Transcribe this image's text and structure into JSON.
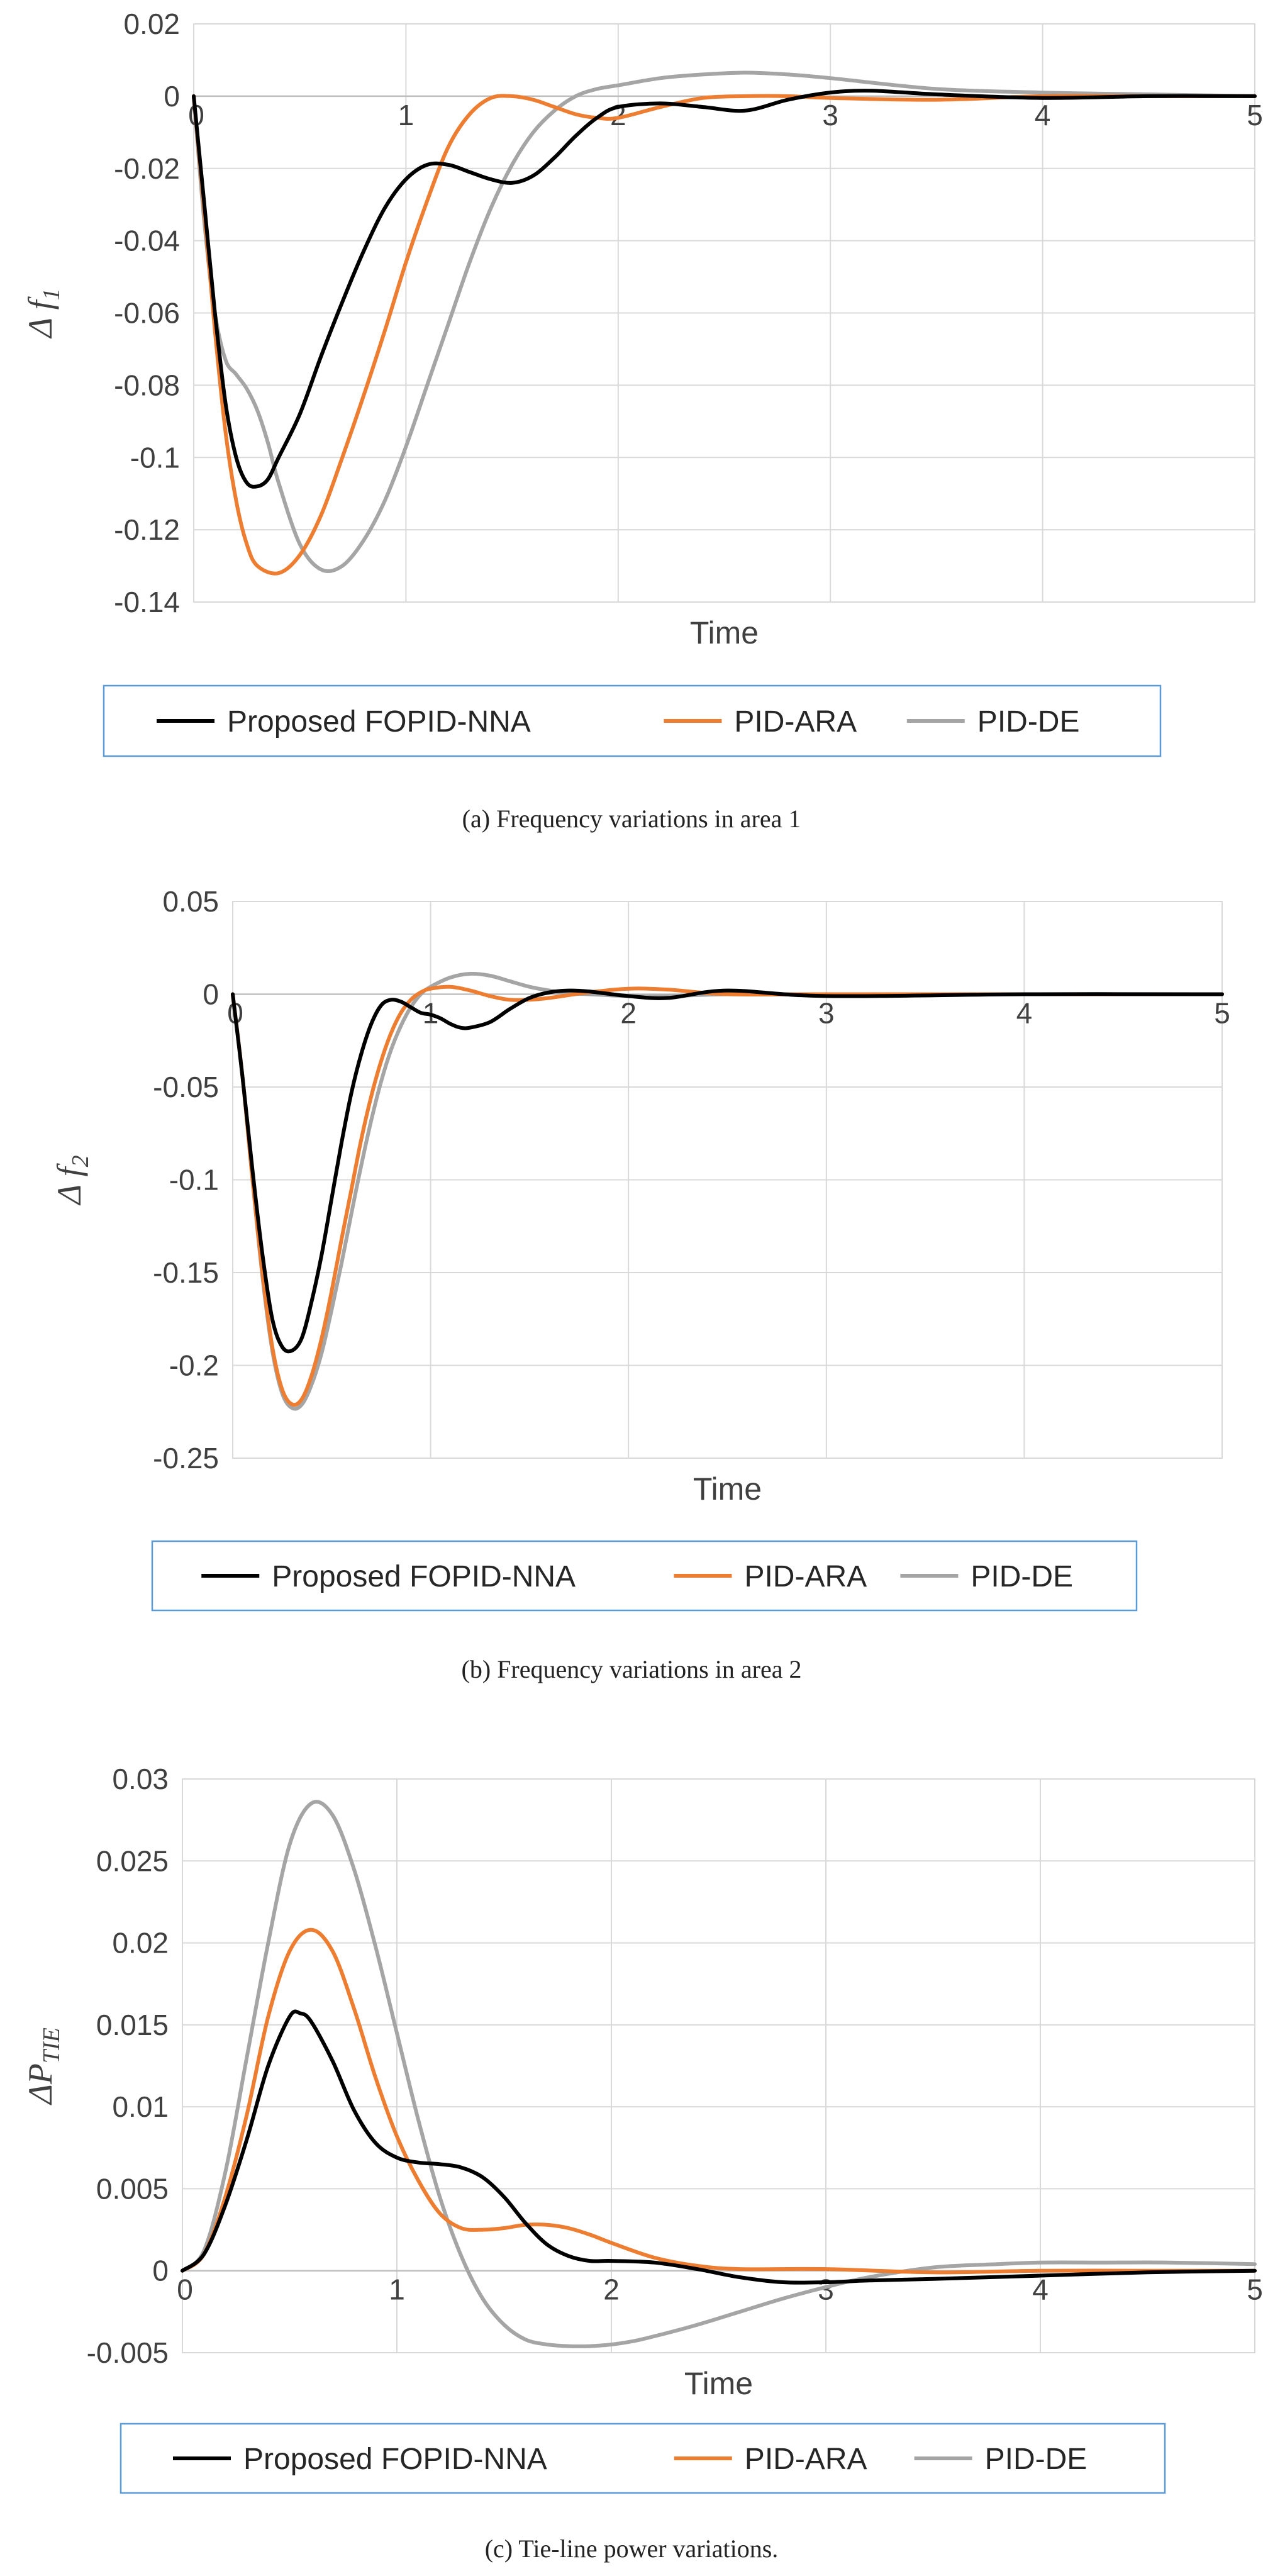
{
  "chart_data": [
    {
      "type": "line",
      "ylabel_main": "Δ f",
      "ylabel_sub": "1",
      "xlabel": "Time",
      "xlim": [
        0,
        5
      ],
      "ylim": [
        -0.14,
        0.02
      ],
      "xticks": [
        "0",
        "1",
        "2",
        "3",
        "4",
        "5"
      ],
      "yticks": [
        "0.02",
        "0",
        "-0.02",
        "-0.04",
        "-0.06",
        "-0.08",
        "-0.1",
        "-0.12",
        "-0.14"
      ],
      "grid": true,
      "legend_position": "bottom",
      "caption": "(a) Frequency variations in area 1",
      "series": [
        {
          "name": "Proposed FOPID-NNA",
          "color": "#000000",
          "x": [
            0,
            0.05,
            0.1,
            0.15,
            0.2,
            0.25,
            0.3,
            0.35,
            0.4,
            0.5,
            0.6,
            0.7,
            0.8,
            0.9,
            1.0,
            1.1,
            1.2,
            1.3,
            1.4,
            1.5,
            1.6,
            1.7,
            1.8,
            1.9,
            2.0,
            2.2,
            2.4,
            2.6,
            2.8,
            3.0,
            3.2,
            3.5,
            4.0,
            4.5,
            5.0
          ],
          "y": [
            0,
            -0.03,
            -0.06,
            -0.085,
            -0.1,
            -0.107,
            -0.108,
            -0.106,
            -0.1,
            -0.088,
            -0.072,
            -0.057,
            -0.043,
            -0.031,
            -0.023,
            -0.019,
            -0.019,
            -0.021,
            -0.023,
            -0.024,
            -0.022,
            -0.017,
            -0.011,
            -0.006,
            -0.003,
            -0.002,
            -0.003,
            -0.004,
            -0.001,
            0.001,
            0.0015,
            0.0005,
            -0.0005,
            0,
            0
          ]
        },
        {
          "name": "PID-ARA",
          "color": "#ed7d31",
          "x": [
            0,
            0.05,
            0.1,
            0.15,
            0.2,
            0.25,
            0.3,
            0.4,
            0.5,
            0.6,
            0.7,
            0.8,
            0.9,
            1.0,
            1.1,
            1.2,
            1.3,
            1.4,
            1.5,
            1.6,
            1.7,
            1.8,
            1.9,
            2.0,
            2.2,
            2.4,
            2.6,
            2.8,
            3.0,
            3.5,
            4.0,
            4.5,
            5.0
          ],
          "y": [
            0,
            -0.032,
            -0.065,
            -0.093,
            -0.112,
            -0.124,
            -0.13,
            -0.132,
            -0.127,
            -0.116,
            -0.1,
            -0.083,
            -0.065,
            -0.046,
            -0.029,
            -0.014,
            -0.005,
            -0.0005,
            0,
            -0.001,
            -0.003,
            -0.005,
            -0.006,
            -0.006,
            -0.003,
            -0.0005,
            0,
            0,
            -0.0005,
            -0.001,
            0,
            0,
            0
          ]
        },
        {
          "name": "PID-DE",
          "color": "#a5a5a5",
          "x": [
            0,
            0.05,
            0.1,
            0.15,
            0.2,
            0.25,
            0.3,
            0.35,
            0.4,
            0.5,
            0.6,
            0.7,
            0.8,
            0.9,
            1.0,
            1.1,
            1.2,
            1.3,
            1.4,
            1.5,
            1.6,
            1.7,
            1.8,
            1.9,
            2.0,
            2.2,
            2.4,
            2.6,
            2.8,
            3.0,
            3.5,
            4.0,
            4.5,
            5.0
          ],
          "y": [
            0,
            -0.035,
            -0.06,
            -0.073,
            -0.077,
            -0.081,
            -0.087,
            -0.096,
            -0.107,
            -0.124,
            -0.131,
            -0.13,
            -0.123,
            -0.112,
            -0.097,
            -0.08,
            -0.063,
            -0.046,
            -0.031,
            -0.019,
            -0.01,
            -0.004,
            0,
            0.002,
            0.003,
            0.005,
            0.006,
            0.0065,
            0.006,
            0.005,
            0.002,
            0.001,
            0.0005,
            0
          ]
        }
      ]
    },
    {
      "type": "line",
      "ylabel_main": "Δ f",
      "ylabel_sub": "2",
      "xlabel": "Time",
      "xlim": [
        0,
        5
      ],
      "ylim": [
        -0.25,
        0.05
      ],
      "xticks": [
        "0",
        "1",
        "2",
        "3",
        "4",
        "5"
      ],
      "yticks": [
        "0.05",
        "0",
        "-0.05",
        "-0.1",
        "-0.15",
        "-0.2",
        "-0.25"
      ],
      "grid": true,
      "legend_position": "bottom",
      "caption": "(b) Frequency variations in area 2",
      "series": [
        {
          "name": "Proposed FOPID-NNA",
          "color": "#000000",
          "x": [
            0,
            0.05,
            0.1,
            0.15,
            0.2,
            0.25,
            0.3,
            0.35,
            0.4,
            0.45,
            0.5,
            0.55,
            0.6,
            0.65,
            0.7,
            0.75,
            0.8,
            0.85,
            0.9,
            0.95,
            1.0,
            1.05,
            1.1,
            1.15,
            1.2,
            1.3,
            1.4,
            1.5,
            1.6,
            1.7,
            1.8,
            2.0,
            2.2,
            2.5,
            3.0,
            4.0,
            5.0
          ],
          "y": [
            0,
            -0.045,
            -0.095,
            -0.14,
            -0.175,
            -0.19,
            -0.192,
            -0.185,
            -0.165,
            -0.14,
            -0.11,
            -0.08,
            -0.053,
            -0.032,
            -0.016,
            -0.006,
            -0.003,
            -0.004,
            -0.007,
            -0.01,
            -0.011,
            -0.013,
            -0.016,
            -0.018,
            -0.018,
            -0.015,
            -0.008,
            -0.002,
            0.001,
            0.002,
            0.0015,
            -0.001,
            -0.002,
            0.002,
            -0.001,
            0,
            0
          ]
        },
        {
          "name": "PID-ARA",
          "color": "#ed7d31",
          "x": [
            0,
            0.05,
            0.1,
            0.15,
            0.2,
            0.25,
            0.3,
            0.35,
            0.4,
            0.45,
            0.5,
            0.55,
            0.6,
            0.65,
            0.7,
            0.75,
            0.8,
            0.85,
            0.9,
            0.95,
            1.0,
            1.1,
            1.2,
            1.3,
            1.4,
            1.5,
            1.6,
            1.8,
            2.0,
            2.2,
            2.5,
            3.0,
            4.0,
            5.0
          ],
          "y": [
            0,
            -0.045,
            -0.1,
            -0.15,
            -0.19,
            -0.213,
            -0.221,
            -0.218,
            -0.205,
            -0.185,
            -0.16,
            -0.132,
            -0.105,
            -0.078,
            -0.055,
            -0.036,
            -0.021,
            -0.01,
            -0.003,
            0.001,
            0.003,
            0.004,
            0.002,
            -0.001,
            -0.003,
            -0.003,
            -0.002,
            0.001,
            0.003,
            0.0025,
            0,
            0,
            0,
            0
          ]
        },
        {
          "name": "PID-DE",
          "color": "#a5a5a5",
          "x": [
            0,
            0.05,
            0.1,
            0.15,
            0.2,
            0.25,
            0.3,
            0.35,
            0.4,
            0.45,
            0.5,
            0.55,
            0.6,
            0.65,
            0.7,
            0.75,
            0.8,
            0.85,
            0.9,
            0.95,
            1.0,
            1.1,
            1.2,
            1.3,
            1.4,
            1.5,
            1.6,
            1.7,
            1.8,
            2.0,
            2.2,
            2.5,
            3.0,
            4.0,
            5.0
          ],
          "y": [
            0,
            -0.045,
            -0.1,
            -0.152,
            -0.192,
            -0.215,
            -0.223,
            -0.221,
            -0.21,
            -0.193,
            -0.17,
            -0.145,
            -0.118,
            -0.092,
            -0.068,
            -0.047,
            -0.03,
            -0.017,
            -0.007,
            0,
            0.004,
            0.009,
            0.011,
            0.01,
            0.007,
            0.004,
            0.002,
            0.0005,
            0,
            -0.001,
            -0.001,
            0,
            0,
            0,
            0
          ]
        }
      ]
    },
    {
      "type": "line",
      "ylabel_main": "ΔP",
      "ylabel_sub": "TIE",
      "xlabel": "Time",
      "xlim": [
        0,
        5
      ],
      "ylim": [
        -0.005,
        0.03
      ],
      "xticks": [
        "0",
        "1",
        "2",
        "3",
        "4",
        "5"
      ],
      "yticks": [
        "0.03",
        "0.025",
        "0.02",
        "0.015",
        "0.01",
        "0.005",
        "0",
        "-0.005"
      ],
      "grid": true,
      "legend_position": "bottom",
      "caption": "(c) Tie-line power variations.",
      "series": [
        {
          "name": "Proposed FOPID-NNA",
          "color": "#000000",
          "x": [
            0,
            0.1,
            0.2,
            0.3,
            0.4,
            0.5,
            0.55,
            0.6,
            0.7,
            0.8,
            0.9,
            1.0,
            1.1,
            1.2,
            1.3,
            1.4,
            1.5,
            1.6,
            1.7,
            1.8,
            1.9,
            2.0,
            2.2,
            2.4,
            2.6,
            2.8,
            3.0,
            3.2,
            3.5,
            4.0,
            4.5,
            5.0
          ],
          "y": [
            0,
            0.001,
            0.004,
            0.008,
            0.0125,
            0.0155,
            0.0157,
            0.0152,
            0.0128,
            0.0098,
            0.0078,
            0.0069,
            0.0066,
            0.0065,
            0.0063,
            0.0057,
            0.0045,
            0.0029,
            0.0016,
            0.0009,
            0.0006,
            0.0006,
            0.0005,
            0.0001,
            -0.0004,
            -0.0007,
            -0.0007,
            -0.0006,
            -0.0005,
            -0.0003,
            -0.0001,
            0
          ]
        },
        {
          "name": "PID-ARA",
          "color": "#ed7d31",
          "x": [
            0,
            0.1,
            0.2,
            0.3,
            0.4,
            0.5,
            0.6,
            0.7,
            0.8,
            0.9,
            1.0,
            1.1,
            1.2,
            1.3,
            1.4,
            1.5,
            1.6,
            1.7,
            1.8,
            1.9,
            2.0,
            2.2,
            2.4,
            2.6,
            3.0,
            3.5,
            4.0,
            4.5,
            5.0
          ],
          "y": [
            0,
            0.001,
            0.0045,
            0.0095,
            0.0155,
            0.0195,
            0.0208,
            0.0195,
            0.016,
            0.0118,
            0.0082,
            0.0055,
            0.0035,
            0.0026,
            0.0025,
            0.0026,
            0.0028,
            0.0028,
            0.0026,
            0.0022,
            0.0017,
            0.0008,
            0.0003,
            0.0001,
            0.0001,
            -0.0001,
            0,
            0,
            0
          ]
        },
        {
          "name": "PID-DE",
          "color": "#a5a5a5",
          "x": [
            0,
            0.1,
            0.2,
            0.3,
            0.4,
            0.5,
            0.6,
            0.7,
            0.8,
            0.9,
            1.0,
            1.1,
            1.2,
            1.3,
            1.4,
            1.5,
            1.6,
            1.7,
            1.8,
            1.9,
            2.0,
            2.1,
            2.2,
            2.4,
            2.6,
            2.8,
            3.0,
            3.2,
            3.5,
            3.8,
            4.0,
            4.3,
            4.6,
            5.0
          ],
          "y": [
            0,
            0.0012,
            0.006,
            0.013,
            0.02,
            0.026,
            0.0285,
            0.0278,
            0.0245,
            0.0198,
            0.0145,
            0.0092,
            0.0045,
            0.0009,
            -0.0017,
            -0.0033,
            -0.0042,
            -0.0045,
            -0.0046,
            -0.0046,
            -0.0045,
            -0.0043,
            -0.004,
            -0.0033,
            -0.0025,
            -0.0017,
            -0.001,
            -0.0004,
            0.0002,
            0.0004,
            0.0005,
            0.0005,
            0.0005,
            0.0004
          ]
        }
      ]
    }
  ]
}
